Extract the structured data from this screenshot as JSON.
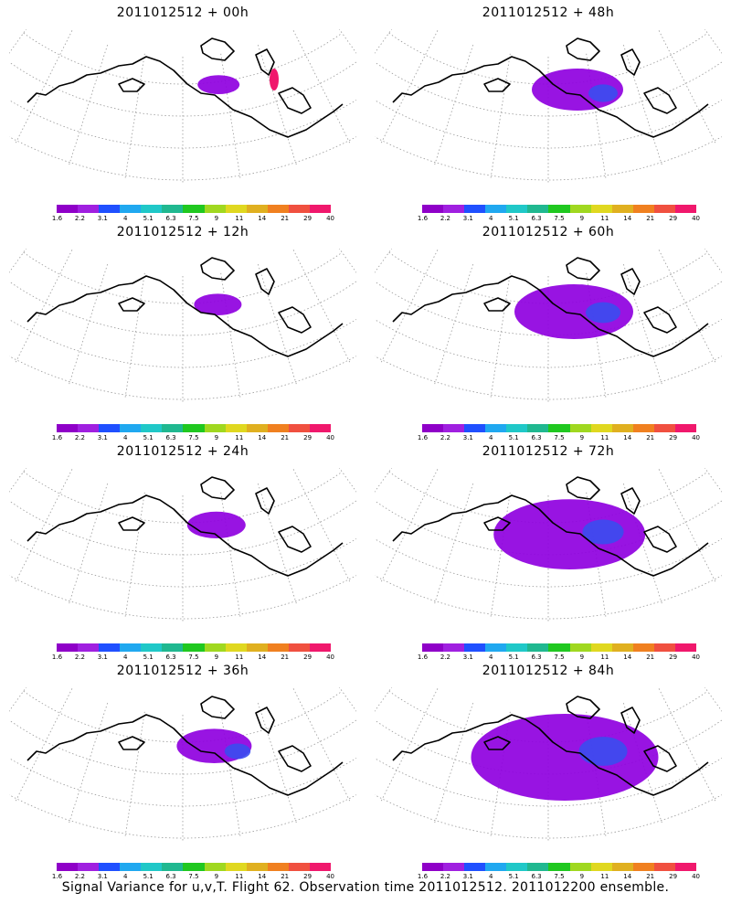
{
  "panels": [
    {
      "title": "2011012512 + 00h",
      "coverage": 0.02
    },
    {
      "title": "2011012512 + 48h",
      "coverage": 0.2
    },
    {
      "title": "2011012512 + 12h",
      "coverage": 0.04
    },
    {
      "title": "2011012512 + 60h",
      "coverage": 0.3
    },
    {
      "title": "2011012512 + 24h",
      "coverage": 0.08
    },
    {
      "title": "2011012512 + 72h",
      "coverage": 0.42
    },
    {
      "title": "2011012512 + 36h",
      "coverage": 0.14
    },
    {
      "title": "2011012512 + 84h",
      "coverage": 0.55
    }
  ],
  "colorbar": {
    "colors": [
      "#8f00c8",
      "#a020e0",
      "#2050ff",
      "#20a8f0",
      "#20c8c8",
      "#20b890",
      "#20c820",
      "#a0d820",
      "#e0d820",
      "#e0b020",
      "#f08020",
      "#f05040",
      "#f0186c"
    ],
    "ticks": [
      "1.6",
      "2.2",
      "3.1",
      "4",
      "5.1",
      "6.3",
      "7.5",
      "9",
      "11",
      "14",
      "21",
      "29",
      "40"
    ]
  },
  "map_style": {
    "fill_primary": "#8f00e0",
    "fill_secondary": "#3a4cf0",
    "fill_accent": "#f0186c",
    "coastline": "#000000",
    "grid": "#999999"
  },
  "caption": "Signal Variance for u,v,T. Flight 62. Observation time 2011012512. 2011012200 ensemble."
}
